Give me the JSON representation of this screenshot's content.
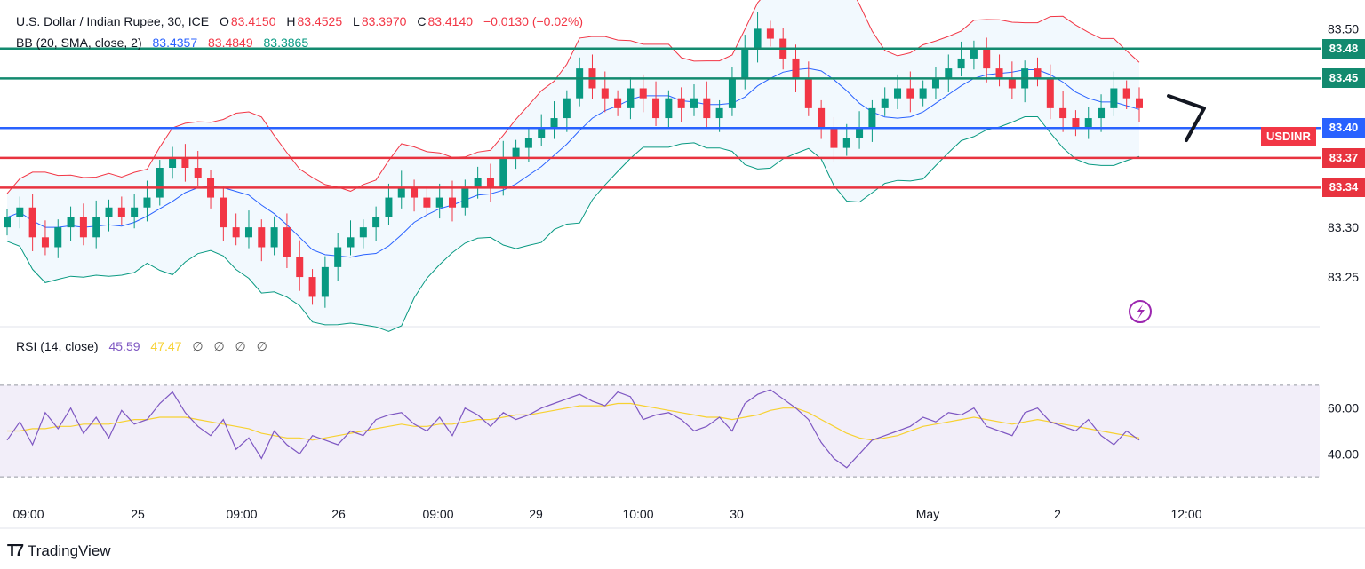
{
  "header": {
    "symbol": "U.S. Dollar / Indian Rupee, 30, ICE",
    "o_label": "O",
    "o_value": "83.4150",
    "h_label": "H",
    "h_value": "83.4525",
    "l_label": "L",
    "l_value": "83.3970",
    "c_label": "C",
    "c_value": "83.4140",
    "change": "−0.0130 (−0.02%)"
  },
  "bb_legend": {
    "name": "BB (20, SMA, close, 2)",
    "basis": "83.4357",
    "upper": "83.4849",
    "lower": "83.3865"
  },
  "rsi_legend": {
    "name": "RSI (14, close)",
    "rsi": "45.59",
    "ma": "47.47",
    "extra": [
      "∅",
      "∅",
      "∅",
      "∅"
    ]
  },
  "price_axis_labels": [
    "83.50",
    "83.30",
    "83.25"
  ],
  "rsi_axis_labels": [
    "60.00",
    "40.00"
  ],
  "time_axis_labels": [
    "09:00",
    "25",
    "09:00",
    "26",
    "09:00",
    "29",
    "10:00",
    "30",
    "May",
    "2",
    "12:00"
  ],
  "horizontal_levels": [
    {
      "label": "83.48",
      "value": 83.48,
      "color": "#138a6f"
    },
    {
      "label": "83.45",
      "value": 83.45,
      "color": "#138a6f"
    },
    {
      "label": "83.40",
      "value": 83.4,
      "color": "#2962ff"
    },
    {
      "label": "83.37",
      "value": 83.37,
      "color": "#e8333f"
    },
    {
      "label": "83.34",
      "value": 83.34,
      "color": "#e8333f"
    }
  ],
  "symbol_tag": "USDINR",
  "colors": {
    "up": "#089981",
    "down": "#f23645",
    "bb_basis": "#2962ff",
    "bb_upper": "#f23645",
    "bb_lower": "#089981",
    "rsi": "#7e57c2",
    "rsi_ma": "#f7d131"
  },
  "footer": {
    "brand": "TradingView"
  },
  "chart_data": {
    "type": "candlestick",
    "title": "U.S. Dollar / Indian Rupee, 30, ICE",
    "ylim": [
      83.2,
      83.52
    ],
    "series": [
      {
        "name": "Close",
        "values": [
          83.31,
          83.32,
          83.29,
          83.28,
          83.3,
          83.31,
          83.29,
          83.31,
          83.32,
          83.31,
          83.32,
          83.33,
          83.36,
          83.37,
          83.36,
          83.35,
          83.33,
          83.3,
          83.29,
          83.3,
          83.28,
          83.3,
          83.27,
          83.25,
          83.23,
          83.26,
          83.28,
          83.29,
          83.3,
          83.31,
          83.33,
          83.34,
          83.33,
          83.32,
          83.33,
          83.32,
          83.34,
          83.35,
          83.34,
          83.37,
          83.38,
          83.39,
          83.4,
          83.41,
          83.43,
          83.46,
          83.44,
          83.43,
          83.42,
          83.44,
          83.43,
          83.41,
          83.43,
          83.42,
          83.43,
          83.41,
          83.42,
          83.45,
          83.48,
          83.5,
          83.49,
          83.47,
          83.45,
          83.42,
          83.4,
          83.38,
          83.39,
          83.4,
          83.42,
          83.43,
          83.44,
          83.43,
          83.44,
          83.45,
          83.46,
          83.47,
          83.48,
          83.46,
          83.45,
          83.44,
          83.46,
          83.45,
          83.42,
          83.41,
          83.4,
          83.41,
          83.42,
          83.44,
          83.43,
          83.42
        ]
      },
      {
        "name": "RSI",
        "values": [
          46,
          54,
          44,
          58,
          51,
          60,
          49,
          56,
          47,
          59,
          53,
          55,
          62,
          67,
          58,
          52,
          48,
          55,
          42,
          47,
          38,
          50,
          44,
          40,
          48,
          46,
          44,
          50,
          48,
          55,
          57,
          58,
          53,
          50,
          56,
          48,
          60,
          57,
          52,
          58,
          55,
          57,
          60,
          62,
          64,
          66,
          63,
          61,
          67,
          65,
          55,
          57,
          58,
          55,
          50,
          52,
          56,
          50,
          62,
          66,
          68,
          64,
          60,
          55,
          45,
          38,
          34,
          40,
          46,
          48,
          50,
          52,
          56,
          54,
          58,
          57,
          60,
          52,
          50,
          48,
          58,
          60,
          54,
          52,
          50,
          55,
          48,
          44,
          50,
          46
        ]
      },
      {
        "name": "RSI MA",
        "values": [
          50,
          50,
          51,
          51,
          52,
          52,
          53,
          53,
          53,
          54,
          55,
          55,
          56,
          56,
          56,
          55,
          54,
          53,
          52,
          51,
          49,
          48,
          47,
          47,
          46,
          47,
          48,
          49,
          50,
          51,
          52,
          53,
          52,
          52,
          53,
          53,
          54,
          55,
          55,
          56,
          57,
          57,
          58,
          59,
          60,
          61,
          61,
          61,
          62,
          62,
          61,
          60,
          59,
          58,
          57,
          56,
          56,
          55,
          56,
          57,
          59,
          60,
          60,
          58,
          55,
          52,
          49,
          47,
          46,
          47,
          48,
          50,
          52,
          53,
          54,
          55,
          56,
          55,
          54,
          53,
          54,
          55,
          54,
          53,
          52,
          51,
          50,
          49,
          48,
          47
        ]
      }
    ]
  }
}
